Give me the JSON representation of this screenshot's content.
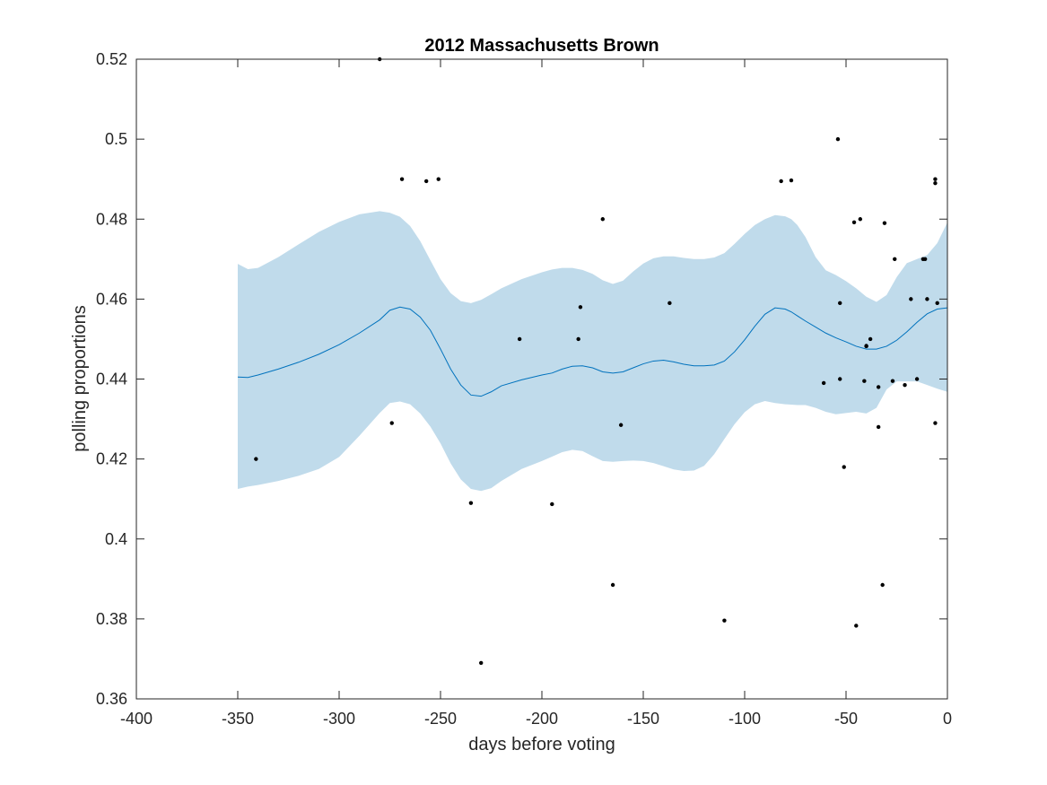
{
  "chart_data": {
    "type": "scatter",
    "title": "2012 Massachusetts Brown",
    "xlabel": "days before voting",
    "ylabel": "polling proportions",
    "xlim": [
      -400,
      0
    ],
    "ylim": [
      0.36,
      0.52
    ],
    "xticks": [
      -400,
      -350,
      -300,
      -250,
      -200,
      -150,
      -100,
      -50,
      0
    ],
    "xtick_labels": [
      "-400",
      "-350",
      "-300",
      "-250",
      "-200",
      "-150",
      "-100",
      "-50",
      "0"
    ],
    "yticks": [
      0.36,
      0.38,
      0.4,
      0.42,
      0.44,
      0.46,
      0.48,
      0.5,
      0.52
    ],
    "ytick_labels": [
      "0.36",
      "0.38",
      "0.4",
      "0.42",
      "0.44",
      "0.46",
      "0.48",
      "0.5",
      "0.52"
    ],
    "grid": false,
    "colors": {
      "band": "#c0dbeb",
      "mean_line": "#0072bd",
      "points": "#000000",
      "axes": "#262626"
    },
    "series": [
      {
        "kind": "points",
        "x": [
          -341,
          -280,
          -274,
          -269,
          -257,
          -251,
          -235,
          -230,
          -211,
          -195,
          -182,
          -181,
          -170,
          -165,
          -161,
          -137,
          -110,
          -82,
          -77,
          -61,
          -54,
          -53,
          -53,
          -51,
          -46,
          -45,
          -43,
          -41,
          -40,
          -40,
          -38,
          -34,
          -34,
          -32,
          -31,
          -27,
          -26,
          -21,
          -18,
          -15,
          -12,
          -11,
          -10,
          -6,
          -6,
          -6,
          -5
        ],
        "y": [
          0.42,
          0.52,
          0.429,
          0.49,
          0.4895,
          0.49,
          0.409,
          0.369,
          0.45,
          0.4087,
          0.45,
          0.458,
          0.48,
          0.3885,
          0.4285,
          0.459,
          0.3796,
          0.4895,
          0.4897,
          0.439,
          0.5,
          0.459,
          0.44,
          0.418,
          0.4792,
          0.3783,
          0.48,
          0.4395,
          0.4482,
          0.4483,
          0.45,
          0.438,
          0.428,
          0.3885,
          0.479,
          0.4395,
          0.47,
          0.4385,
          0.46,
          0.44,
          0.47,
          0.47,
          0.46,
          0.429,
          0.489,
          0.49,
          0.459
        ]
      },
      {
        "kind": "mean",
        "x": [
          -350,
          -345,
          -340,
          -330,
          -320,
          -310,
          -300,
          -290,
          -280,
          -275,
          -270,
          -265,
          -260,
          -255,
          -250,
          -245,
          -240,
          -235,
          -230,
          -225,
          -220,
          -210,
          -200,
          -195,
          -190,
          -185,
          -180,
          -175,
          -170,
          -165,
          -160,
          -155,
          -150,
          -145,
          -140,
          -135,
          -130,
          -125,
          -120,
          -115,
          -110,
          -105,
          -100,
          -95,
          -90,
          -85,
          -80,
          -77,
          -74,
          -70,
          -65,
          -60,
          -55,
          -50,
          -45,
          -40,
          -35,
          -30,
          -25,
          -20,
          -15,
          -10,
          -5,
          0
        ],
        "y": [
          0.4405,
          0.4404,
          0.441,
          0.4425,
          0.4442,
          0.4462,
          0.4486,
          0.4515,
          0.4548,
          0.4572,
          0.458,
          0.4575,
          0.4555,
          0.4522,
          0.4475,
          0.4425,
          0.4385,
          0.436,
          0.4357,
          0.4368,
          0.4383,
          0.4398,
          0.441,
          0.4415,
          0.4425,
          0.4432,
          0.4433,
          0.4428,
          0.4418,
          0.4415,
          0.4418,
          0.4428,
          0.4438,
          0.4445,
          0.4447,
          0.4443,
          0.4437,
          0.4433,
          0.4433,
          0.4435,
          0.4445,
          0.4468,
          0.4498,
          0.4532,
          0.4562,
          0.4578,
          0.4575,
          0.4568,
          0.4558,
          0.4545,
          0.453,
          0.4515,
          0.4503,
          0.4493,
          0.4482,
          0.4475,
          0.4475,
          0.4482,
          0.4497,
          0.4518,
          0.4542,
          0.4563,
          0.4575,
          0.4578
        ]
      },
      {
        "kind": "band",
        "x": [
          -350,
          -345,
          -340,
          -330,
          -320,
          -310,
          -300,
          -290,
          -280,
          -275,
          -270,
          -265,
          -260,
          -255,
          -250,
          -245,
          -240,
          -235,
          -230,
          -225,
          -220,
          -210,
          -200,
          -195,
          -190,
          -185,
          -180,
          -175,
          -170,
          -165,
          -160,
          -155,
          -150,
          -145,
          -140,
          -135,
          -130,
          -125,
          -120,
          -115,
          -110,
          -105,
          -100,
          -95,
          -90,
          -85,
          -80,
          -77,
          -74,
          -70,
          -65,
          -60,
          -55,
          -50,
          -45,
          -40,
          -35,
          -30,
          -25,
          -20,
          -15,
          -10,
          -5,
          0
        ],
        "upper": [
          0.4688,
          0.4675,
          0.4678,
          0.4705,
          0.4737,
          0.4768,
          0.4793,
          0.4812,
          0.482,
          0.4816,
          0.4806,
          0.4783,
          0.4745,
          0.4697,
          0.465,
          0.4615,
          0.4595,
          0.459,
          0.4598,
          0.4612,
          0.4627,
          0.465,
          0.4667,
          0.4674,
          0.4678,
          0.4678,
          0.4673,
          0.4663,
          0.4647,
          0.4638,
          0.4646,
          0.4669,
          0.4689,
          0.4702,
          0.4707,
          0.4707,
          0.4703,
          0.47,
          0.47,
          0.4704,
          0.4715,
          0.4738,
          0.4763,
          0.4785,
          0.48,
          0.481,
          0.4807,
          0.48,
          0.4785,
          0.4755,
          0.4705,
          0.4672,
          0.466,
          0.4645,
          0.4627,
          0.4606,
          0.4593,
          0.461,
          0.4655,
          0.469,
          0.47,
          0.471,
          0.474,
          0.4792
        ],
        "lower": [
          0.4125,
          0.4131,
          0.4135,
          0.4145,
          0.4158,
          0.4175,
          0.4205,
          0.4258,
          0.4315,
          0.434,
          0.4344,
          0.4337,
          0.4314,
          0.4281,
          0.4239,
          0.4189,
          0.4149,
          0.4125,
          0.412,
          0.4127,
          0.4145,
          0.4175,
          0.4195,
          0.4206,
          0.4217,
          0.4223,
          0.422,
          0.4207,
          0.4195,
          0.4193,
          0.4195,
          0.4196,
          0.4195,
          0.419,
          0.4182,
          0.4174,
          0.417,
          0.4171,
          0.4183,
          0.4212,
          0.425,
          0.4287,
          0.4317,
          0.4337,
          0.4345,
          0.434,
          0.4337,
          0.4336,
          0.4335,
          0.4335,
          0.4328,
          0.4318,
          0.4312,
          0.4315,
          0.4318,
          0.4314,
          0.4328,
          0.4374,
          0.4394,
          0.4394,
          0.4394,
          0.4385,
          0.4376,
          0.4368
        ]
      }
    ]
  }
}
